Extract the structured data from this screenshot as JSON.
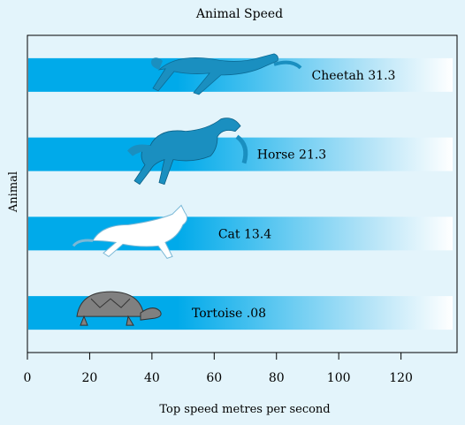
{
  "chart_data": {
    "type": "bar",
    "orientation": "horizontal",
    "title": "Animal Speed",
    "xlabel": "Top speed metres per second",
    "ylabel": "Animal",
    "categories": [
      "Cheetah",
      "Horse",
      "Cat",
      "Tortoise"
    ],
    "values": [
      31.3,
      21.3,
      13.4,
      0.08
    ],
    "data_labels": [
      "Cheetah 31.3",
      "Horse 21.3",
      "Cat  13.4",
      "Tortoise  .08"
    ],
    "icons": [
      "cheetah-icon",
      "horse-icon",
      "cat-icon",
      "tortoise-icon"
    ],
    "xlim": [
      0,
      138
    ],
    "xticks": [
      0,
      20,
      40,
      60,
      80,
      100,
      120
    ],
    "grid": false,
    "colors": {
      "background": "#e3f4fb",
      "bar_start": "#00aaea",
      "bar_end": "#ffffff",
      "animal_fill": "#1a8fc0",
      "animal_cat": "#ffffff",
      "animal_tortoise": "#808080",
      "axis": "#000000"
    }
  }
}
